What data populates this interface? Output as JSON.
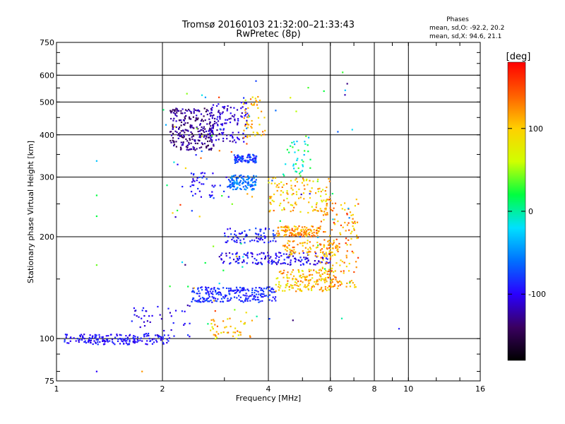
{
  "chart_data": {
    "type": "scatter",
    "title": "Tromsø 20160103 21:32:00–21:33:43",
    "subtitle": "RwPretec (8p)",
    "stats": {
      "heading": "Phases",
      "line1": "mean, sd,O: -92.2, 20.2",
      "line2": "mean, sd,X:  94.6, 21.1"
    },
    "xlabel": "Frequency [MHz]",
    "ylabel": "Stationary phase Virtual Height [km]",
    "x_scale": "log",
    "y_scale": "log",
    "xlim": [
      1,
      16
    ],
    "ylim": [
      75,
      750
    ],
    "x_ticks": [
      1,
      2,
      4,
      6,
      8,
      10,
      16
    ],
    "x_grid": [
      2,
      4,
      6,
      8,
      10
    ],
    "y_ticks": [
      75,
      100,
      200,
      300,
      400,
      500,
      600,
      750
    ],
    "y_grid": [
      100,
      200,
      300,
      400,
      500,
      600
    ],
    "grid": true,
    "colorbar": {
      "label": "[deg]",
      "ticks": [
        100,
        0,
        -100
      ],
      "range": [
        -180,
        180
      ],
      "colors": [
        "#000000",
        "#3a0060",
        "#2a00ff",
        "#0070ff",
        "#00e0ff",
        "#00ff40",
        "#d0ff00",
        "#ffd000",
        "#ff6000",
        "#ff0000"
      ]
    },
    "clusters": [
      {
        "name": "low_trace",
        "f": [
          1.05,
          2.1
        ],
        "h": [
          96,
          103
        ],
        "phase": [
          -110,
          -80
        ],
        "n": 170
      },
      {
        "name": "low_rise",
        "f": [
          1.6,
          2.4
        ],
        "h": [
          100,
          125
        ],
        "phase": [
          -120,
          -80
        ],
        "n": 45
      },
      {
        "name": "low_yellow",
        "f": [
          2.7,
          3.6
        ],
        "h": [
          99,
          115
        ],
        "phase": [
          60,
          140
        ],
        "n": 45
      },
      {
        "name": "E_lower",
        "f": [
          2.4,
          4.2
        ],
        "h": [
          128,
          142
        ],
        "phase": [
          -100,
          -70
        ],
        "n": 230
      },
      {
        "name": "E_lower_ext",
        "f": [
          4.2,
          6.3
        ],
        "h": [
          138,
          160
        ],
        "phase": [
          70,
          140
        ],
        "n": 170
      },
      {
        "name": "mid_band_170",
        "f": [
          2.9,
          6.0
        ],
        "h": [
          165,
          180
        ],
        "phase": [
          -120,
          -80
        ],
        "n": 160
      },
      {
        "name": "mid_band_185",
        "f": [
          4.4,
          6.4
        ],
        "h": [
          175,
          195
        ],
        "phase": [
          80,
          140
        ],
        "n": 90
      },
      {
        "name": "layer_200",
        "f": [
          4.2,
          5.6
        ],
        "h": [
          200,
          215
        ],
        "phase": [
          90,
          150
        ],
        "n": 120
      },
      {
        "name": "layer_200_blue",
        "f": [
          3.0,
          4.2
        ],
        "h": [
          192,
          212
        ],
        "phase": [
          -110,
          -70
        ],
        "n": 70
      },
      {
        "name": "right_arc",
        "f": [
          5.6,
          7.2
        ],
        "h": [
          140,
          260
        ],
        "phase": [
          80,
          160
        ],
        "n": 160
      },
      {
        "name": "F_250",
        "f": [
          4.0,
          6.0
        ],
        "h": [
          235,
          300
        ],
        "phase": [
          60,
          140
        ],
        "n": 120
      },
      {
        "name": "F_290",
        "f": [
          3.1,
          3.7
        ],
        "h": [
          275,
          305
        ],
        "phase": [
          -80,
          -40
        ],
        "n": 110
      },
      {
        "name": "F_340",
        "f": [
          3.2,
          3.7
        ],
        "h": [
          330,
          350
        ],
        "phase": [
          -100,
          -60
        ],
        "n": 80
      },
      {
        "name": "F_290_left",
        "f": [
          2.4,
          3.1
        ],
        "h": [
          260,
          310
        ],
        "phase": [
          -110,
          -70
        ],
        "n": 45
      },
      {
        "name": "upper_purple",
        "f": [
          2.1,
          2.8
        ],
        "h": [
          360,
          480
        ],
        "phase": [
          -150,
          -110
        ],
        "n": 260
      },
      {
        "name": "upper_mid",
        "f": [
          2.7,
          3.5
        ],
        "h": [
          380,
          500
        ],
        "phase": [
          -130,
          -90
        ],
        "n": 120
      },
      {
        "name": "upper_yellow",
        "f": [
          3.4,
          3.9
        ],
        "h": [
          390,
          520
        ],
        "phase": [
          80,
          140
        ],
        "n": 50
      },
      {
        "name": "right_cyan",
        "f": [
          4.4,
          5.3
        ],
        "h": [
          300,
          400
        ],
        "phase": [
          -40,
          40
        ],
        "n": 40
      },
      {
        "name": "scatter",
        "f": [
          2.0,
          7.0
        ],
        "h": [
          110,
          600
        ],
        "phase": [
          -140,
          160
        ],
        "n": 90
      }
    ],
    "isolated_points": [
      {
        "x": 1.3,
        "y": 335,
        "phase": -30
      },
      {
        "x": 1.3,
        "y": 265,
        "phase": 20
      },
      {
        "x": 1.3,
        "y": 230,
        "phase": 20
      },
      {
        "x": 1.3,
        "y": 165,
        "phase": 40
      },
      {
        "x": 1.3,
        "y": 80,
        "phase": -100
      },
      {
        "x": 1.75,
        "y": 80,
        "phase": 120
      },
      {
        "x": 6.5,
        "y": 612,
        "phase": 30
      },
      {
        "x": 6.6,
        "y": 525,
        "phase": -120
      },
      {
        "x": 9.4,
        "y": 107,
        "phase": -90
      }
    ]
  }
}
